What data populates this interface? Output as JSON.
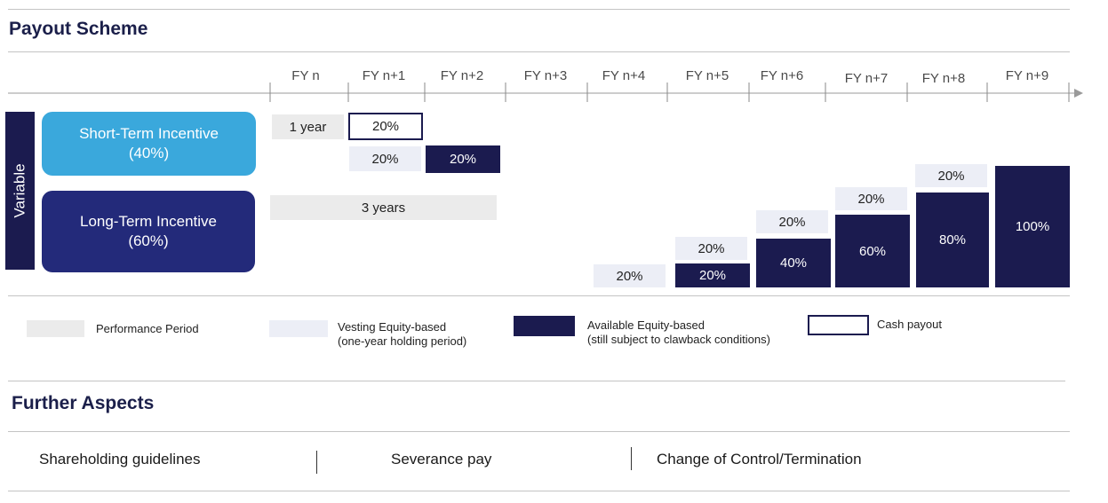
{
  "payout": {
    "title": "Payout Scheme",
    "fiscal_years": [
      "FY n",
      "FY n+1",
      "FY n+2",
      "FY n+3",
      "FY n+4",
      "FY n+5",
      "FY n+6",
      "FY n+7",
      "FY n+8",
      "FY n+9"
    ],
    "variable_label": "Variable",
    "sti": {
      "label_line1": "Short-Term Incentive",
      "label_line2": "(40%)"
    },
    "lti": {
      "label_line1": "Long-Term Incentive",
      "label_line2": "(60%)"
    },
    "sti_perf": "1 year",
    "sti_cash": "20%",
    "sti_vest": "20%",
    "sti_avail": "20%",
    "lti_perf": "3 years",
    "lti_vest": [
      "20%",
      "20%",
      "20%",
      "20%",
      "20%"
    ],
    "lti_avail": [
      "20%",
      "40%",
      "60%",
      "80%",
      "100%"
    ]
  },
  "legend": {
    "performance": "Performance Period",
    "vesting_line1": "Vesting Equity-based",
    "vesting_line2": "(one-year holding period)",
    "available_line1": "Available Equity-based",
    "available_line2": "(still subject to clawback conditions)",
    "cash": "Cash payout"
  },
  "further": {
    "title": "Further Aspects",
    "items": [
      "Shareholding guidelines",
      "Severance pay",
      "Change of Control/Termination"
    ]
  },
  "colors": {
    "dark_navy": "#1b1b4f",
    "sti_blue": "#3aa8dc",
    "lti_blue": "#232a7a",
    "performance_gray": "#ebebeb",
    "vesting_light": "#eceef6"
  }
}
